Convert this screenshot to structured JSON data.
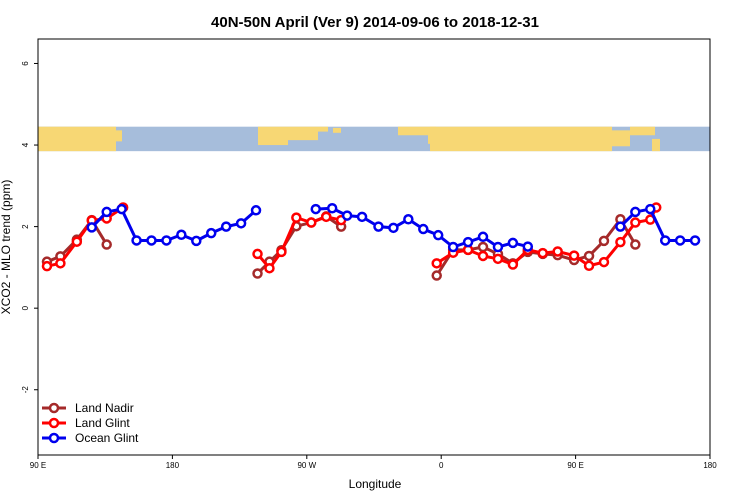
{
  "chart_data": {
    "type": "line",
    "title": "40N-50N April (Ver 9)   2014-09-06 to 2018-12-31",
    "xlabel": "Longitude",
    "ylabel": "XCO2 - MLO trend (ppm)",
    "xlim": [
      90,
      540
    ],
    "ylim": [
      -3.6,
      6.6
    ],
    "x_ticks": [
      {
        "value": 90,
        "label": "90 E"
      },
      {
        "value": 180,
        "label": "180"
      },
      {
        "value": 270,
        "label": "90 W"
      },
      {
        "value": 360,
        "label": "0"
      },
      {
        "value": 450,
        "label": "90 E"
      },
      {
        "value": 540,
        "label": "180"
      }
    ],
    "y_ticks": [
      {
        "value": -2,
        "label": "-2"
      },
      {
        "value": 0,
        "label": "0"
      },
      {
        "value": 2,
        "label": "2"
      },
      {
        "value": 4,
        "label": "4"
      },
      {
        "value": 6,
        "label": "6"
      }
    ],
    "map_strip": {
      "y_range": [
        3.85,
        4.45
      ],
      "ocean_color": "#a6bddb",
      "land_color": "#f7d774"
    },
    "legend_position": "bottom-left",
    "series": [
      {
        "name": "Land Nadir",
        "color": "#a52a2a",
        "segments": [
          [
            [
              96,
              1.14
            ],
            [
              105,
              1.27
            ],
            [
              116,
              1.68
            ],
            [
              126,
              2.16
            ],
            [
              136,
              1.56
            ]
          ],
          [
            [
              237,
              0.85
            ],
            [
              245,
              1.14
            ],
            [
              253,
              1.42
            ],
            [
              263,
              2.01
            ],
            [
              273,
              2.1
            ],
            [
              283,
              2.25
            ],
            [
              293,
              2.0
            ]
          ],
          [
            [
              357,
              0.8
            ],
            [
              368,
              1.43
            ],
            [
              378,
              1.43
            ],
            [
              388,
              1.5
            ],
            [
              398,
              1.33
            ],
            [
              408,
              1.1
            ],
            [
              418,
              1.38
            ],
            [
              428,
              1.33
            ],
            [
              438,
              1.3
            ],
            [
              449,
              1.18
            ],
            [
              459,
              1.28
            ],
            [
              469,
              1.65
            ],
            [
              480,
              2.18
            ],
            [
              490,
              1.56
            ]
          ]
        ]
      },
      {
        "name": "Land Glint",
        "color": "#ff0000",
        "segments": [
          [
            [
              96,
              1.03
            ],
            [
              105,
              1.1
            ],
            [
              116,
              1.63
            ],
            [
              126,
              2.15
            ],
            [
              136,
              2.2
            ],
            [
              147,
              2.47
            ]
          ],
          [
            [
              237,
              1.33
            ],
            [
              245,
              0.98
            ],
            [
              253,
              1.38
            ],
            [
              263,
              2.22
            ],
            [
              273,
              2.1
            ],
            [
              283,
              2.24
            ],
            [
              293,
              2.16
            ]
          ],
          [
            [
              357,
              1.1
            ],
            [
              368,
              1.36
            ],
            [
              378,
              1.43
            ],
            [
              388,
              1.28
            ],
            [
              398,
              1.21
            ],
            [
              408,
              1.07
            ],
            [
              418,
              1.43
            ],
            [
              428,
              1.35
            ],
            [
              438,
              1.39
            ],
            [
              449,
              1.29
            ],
            [
              459,
              1.04
            ],
            [
              469,
              1.13
            ],
            [
              480,
              1.62
            ],
            [
              490,
              2.1
            ],
            [
              500,
              2.17
            ],
            [
              504,
              2.47
            ]
          ]
        ]
      },
      {
        "name": "Ocean Glint",
        "color": "#0000ee",
        "segments": [
          [
            [
              126,
              1.98
            ],
            [
              136,
              2.36
            ],
            [
              146,
              2.43
            ],
            [
              156,
              1.66
            ],
            [
              166,
              1.66
            ],
            [
              176,
              1.66
            ],
            [
              186,
              1.8
            ],
            [
              196,
              1.65
            ],
            [
              206,
              1.84
            ],
            [
              216,
              2.0
            ],
            [
              226,
              2.08
            ],
            [
              236,
              2.4
            ]
          ],
          [
            [
              276,
              2.43
            ],
            [
              287,
              2.45
            ],
            [
              297,
              2.27
            ],
            [
              307,
              2.24
            ],
            [
              318,
              2.0
            ],
            [
              328,
              1.97
            ],
            [
              338,
              2.18
            ],
            [
              348,
              1.94
            ],
            [
              358,
              1.79
            ],
            [
              368,
              1.5
            ],
            [
              378,
              1.62
            ],
            [
              388,
              1.75
            ],
            [
              398,
              1.5
            ],
            [
              408,
              1.6
            ],
            [
              418,
              1.51
            ]
          ],
          [
            [
              480,
              2.0
            ],
            [
              490,
              2.36
            ],
            [
              500,
              2.43
            ],
            [
              510,
              1.66
            ],
            [
              520,
              1.66
            ],
            [
              530,
              1.66
            ]
          ]
        ]
      }
    ]
  }
}
